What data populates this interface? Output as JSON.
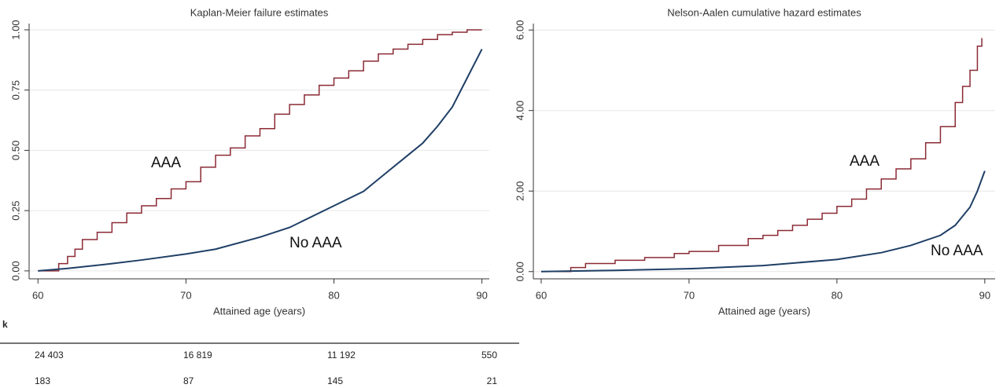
{
  "chart_data": [
    {
      "type": "line",
      "title": "Kaplan-Meier failure estimates",
      "xlabel": "Attained age (years)",
      "xlim": [
        59.4,
        90.5
      ],
      "ylim": [
        -0.033,
        1.026
      ],
      "xticks": [
        60,
        70,
        80,
        90
      ],
      "yticks": [
        {
          "value": 0,
          "label": "0.00"
        },
        {
          "value": 0.25,
          "label": "0.25"
        },
        {
          "value": 0.5,
          "label": "0.50"
        },
        {
          "value": 0.75,
          "label": "0.75"
        },
        {
          "value": 1,
          "label": "1.00"
        }
      ],
      "grid": true,
      "series": [
        {
          "name": "AAA",
          "color": "#8b2a35",
          "drawstyle": "steps-post",
          "x": [
            60,
            61.3,
            61.4,
            62,
            62.5,
            63,
            64,
            65,
            66,
            67,
            68,
            69,
            70,
            71,
            72,
            73,
            74,
            75,
            76,
            77,
            78,
            79,
            80,
            81,
            82,
            83,
            84,
            85,
            86,
            87,
            88,
            89,
            90
          ],
          "values": [
            0,
            0,
            0.03,
            0.06,
            0.09,
            0.13,
            0.16,
            0.2,
            0.24,
            0.27,
            0.3,
            0.34,
            0.37,
            0.43,
            0.48,
            0.51,
            0.56,
            0.59,
            0.65,
            0.69,
            0.73,
            0.77,
            0.8,
            0.83,
            0.87,
            0.9,
            0.92,
            0.94,
            0.96,
            0.98,
            0.99,
            1.0,
            1.0
          ]
        },
        {
          "name": "No AAA",
          "color": "#1f3f66",
          "drawstyle": "linear",
          "x": [
            60,
            62,
            65,
            67,
            70,
            72,
            75,
            77,
            80,
            82,
            83,
            85,
            86,
            87,
            88,
            89,
            90
          ],
          "values": [
            0,
            0.01,
            0.03,
            0.045,
            0.07,
            0.09,
            0.14,
            0.18,
            0.27,
            0.33,
            0.38,
            0.48,
            0.53,
            0.6,
            0.68,
            0.8,
            0.92
          ]
        }
      ]
    },
    {
      "type": "line",
      "title": "Nelson-Aalen cumulative hazard estimates",
      "xlabel": "Attained age (years)",
      "xlim": [
        59.47,
        90.7
      ],
      "ylim": [
        -0.18,
        6.16
      ],
      "xticks": [
        60,
        70,
        80,
        90
      ],
      "yticks": [
        {
          "value": 0,
          "label": "0.00"
        },
        {
          "value": 2,
          "label": "2.00"
        },
        {
          "value": 4,
          "label": "4.00"
        },
        {
          "value": 6,
          "label": "6.00"
        }
      ],
      "grid": true,
      "series": [
        {
          "name": "AAA",
          "color": "#8b2a35",
          "drawstyle": "steps-post",
          "x": [
            60,
            62,
            63,
            65,
            67,
            69,
            70,
            72,
            74,
            75,
            76,
            77,
            78,
            79,
            80,
            81,
            82,
            83,
            84,
            85,
            86,
            87,
            88,
            88.5,
            89,
            89.5,
            89.8
          ],
          "values": [
            0,
            0.1,
            0.2,
            0.28,
            0.35,
            0.45,
            0.5,
            0.65,
            0.82,
            0.9,
            1.02,
            1.15,
            1.3,
            1.45,
            1.62,
            1.8,
            2.05,
            2.3,
            2.55,
            2.8,
            3.2,
            3.6,
            4.2,
            4.6,
            5.0,
            5.6,
            5.8
          ]
        },
        {
          "name": "No AAA",
          "color": "#1f3f66",
          "drawstyle": "linear",
          "x": [
            60,
            65,
            70,
            75,
            80,
            83,
            85,
            87,
            88,
            89,
            89.5,
            90
          ],
          "values": [
            0,
            0.03,
            0.07,
            0.15,
            0.3,
            0.47,
            0.65,
            0.9,
            1.15,
            1.6,
            2.0,
            2.5
          ]
        }
      ]
    }
  ],
  "table": {
    "header": "k",
    "rows": [
      [
        "24 403",
        "16 819",
        "11 192",
        "550"
      ],
      [
        "183",
        "87",
        "145",
        "21"
      ]
    ]
  }
}
